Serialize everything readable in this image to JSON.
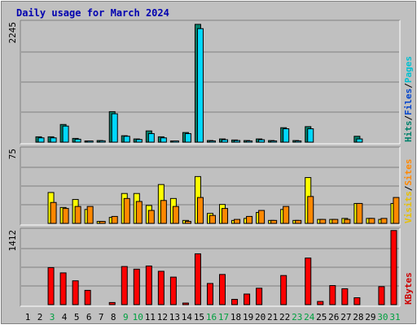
{
  "chart_data": {
    "type": "bar",
    "title": "Daily usage for March 2024",
    "categories": [
      "1",
      "2",
      "3",
      "4",
      "5",
      "6",
      "7",
      "8",
      "9",
      "10",
      "11",
      "12",
      "13",
      "14",
      "15",
      "16",
      "17",
      "18",
      "19",
      "20",
      "21",
      "22",
      "23",
      "24",
      "25",
      "26",
      "27",
      "28",
      "29",
      "30",
      "31"
    ],
    "weekend_days": [
      "3",
      "9",
      "10",
      "16",
      "17",
      "23",
      "24",
      "30",
      "31"
    ],
    "panels": [
      {
        "id": "hits",
        "ymax": 2245,
        "ymax_label": "2245",
        "ylim": [
          0,
          2245
        ],
        "legend": [
          {
            "text": "Pages",
            "color": "#00c0d0"
          },
          {
            "text": "Files",
            "color": "#0044cc"
          },
          {
            "text": "Hits",
            "color": "#00806a"
          }
        ],
        "series": [
          {
            "name": "Hits",
            "color": "#00806a",
            "values": [
              0,
              100,
              100,
              330,
              70,
              15,
              30,
              570,
              120,
              60,
              210,
              100,
              20,
              180,
              2200,
              30,
              60,
              40,
              30,
              60,
              30,
              270,
              30,
              290,
              0,
              0,
              0,
              110,
              0,
              0,
              0
            ]
          },
          {
            "name": "Files",
            "color": "#00d8ff",
            "values": [
              0,
              80,
              80,
              300,
              55,
              10,
              25,
              530,
              110,
              50,
              160,
              80,
              15,
              160,
              2120,
              20,
              45,
              30,
              20,
              45,
              20,
              250,
              20,
              250,
              0,
              0,
              0,
              60,
              0,
              0,
              0
            ]
          }
        ]
      },
      {
        "id": "visits",
        "ymax": 75,
        "ymax_label": "75",
        "ylim": [
          0,
          75
        ],
        "legend": [
          {
            "text": "Sites",
            "color": "#ff8800"
          },
          {
            "text": "Visits",
            "color": "#e8c000"
          }
        ],
        "series": [
          {
            "name": "Visits",
            "color": "#ffff00",
            "values": [
              0,
              0,
              31,
              16,
              24,
              14,
              2,
              6,
              30,
              30,
              18,
              39,
              25,
              3,
              47,
              10,
              19,
              3,
              5,
              11,
              3,
              14,
              3,
              46,
              4,
              4,
              5,
              20,
              5,
              4,
              20
            ]
          },
          {
            "name": "Sites",
            "color": "#ff8800",
            "values": [
              0,
              0,
              21,
              15,
              17,
              17,
              2,
              7,
              25,
              22,
              13,
              23,
              17,
              2,
              26,
              8,
              15,
              4,
              7,
              13,
              3,
              17,
              3,
              27,
              4,
              4,
              4,
              20,
              5,
              5,
              26
            ]
          }
        ]
      },
      {
        "id": "kbytes",
        "ymax": 1412,
        "ymax_label": "1412",
        "ylim": [
          0,
          1412
        ],
        "legend": [
          {
            "text": "KBytes",
            "color": "#cc0000"
          }
        ],
        "series": [
          {
            "name": "KBytes",
            "color": "#ff0000",
            "values": [
              0,
              0,
              700,
              600,
              450,
              270,
              0,
              40,
              720,
              670,
              730,
              630,
              520,
              30,
              960,
              400,
              570,
              100,
              200,
              310,
              0,
              550,
              0,
              880,
              60,
              360,
              300,
              130,
              0,
              340,
              1400
            ]
          }
        ]
      }
    ]
  }
}
